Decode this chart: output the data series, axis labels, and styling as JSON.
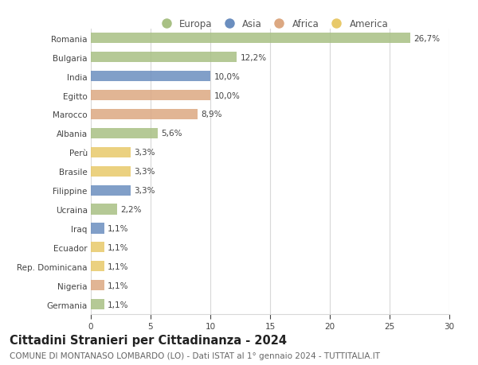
{
  "categories": [
    "Romania",
    "Bulgaria",
    "India",
    "Egitto",
    "Marocco",
    "Albania",
    "Perù",
    "Brasile",
    "Filippine",
    "Ucraina",
    "Iraq",
    "Ecuador",
    "Rep. Dominicana",
    "Nigeria",
    "Germania"
  ],
  "values": [
    26.7,
    12.2,
    10.0,
    10.0,
    8.9,
    5.6,
    3.3,
    3.3,
    3.3,
    2.2,
    1.1,
    1.1,
    1.1,
    1.1,
    1.1
  ],
  "labels": [
    "26,7%",
    "12,2%",
    "10,0%",
    "10,0%",
    "8,9%",
    "5,6%",
    "3,3%",
    "3,3%",
    "3,3%",
    "2,2%",
    "1,1%",
    "1,1%",
    "1,1%",
    "1,1%",
    "1,1%"
  ],
  "continents": [
    "Europa",
    "Europa",
    "Asia",
    "Africa",
    "Africa",
    "Europa",
    "America",
    "America",
    "Asia",
    "Europa",
    "Asia",
    "America",
    "America",
    "Africa",
    "Europa"
  ],
  "continent_colors": {
    "Europa": "#a8c084",
    "Asia": "#6b8ebf",
    "Africa": "#dca882",
    "America": "#e8c96a"
  },
  "legend_order": [
    "Europa",
    "Asia",
    "Africa",
    "America"
  ],
  "title": "Cittadini Stranieri per Cittadinanza - 2024",
  "subtitle": "COMUNE DI MONTANASO LOMBARDO (LO) - Dati ISTAT al 1° gennaio 2024 - TUTTITALIA.IT",
  "xlim": [
    0,
    30
  ],
  "xticks": [
    0,
    5,
    10,
    15,
    20,
    25,
    30
  ],
  "background_color": "#ffffff",
  "grid_color": "#d8d8d8",
  "bar_height": 0.55,
  "title_fontsize": 10.5,
  "subtitle_fontsize": 7.5,
  "label_fontsize": 7.5,
  "tick_fontsize": 7.5,
  "legend_fontsize": 8.5
}
